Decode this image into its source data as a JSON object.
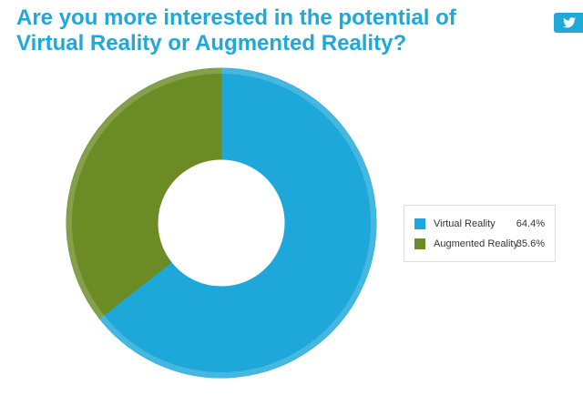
{
  "chart_data": {
    "type": "donut",
    "title": "Are you more interested in the potential of Virtual Reality or Augmented Reality?",
    "categories": [
      "Virtual Reality",
      "Augmented Reality"
    ],
    "values": [
      64.4,
      35.6
    ],
    "value_labels": [
      "64.4%",
      "35.6%"
    ],
    "colors": [
      "#1ea8da",
      "#6b8b24"
    ]
  }
}
